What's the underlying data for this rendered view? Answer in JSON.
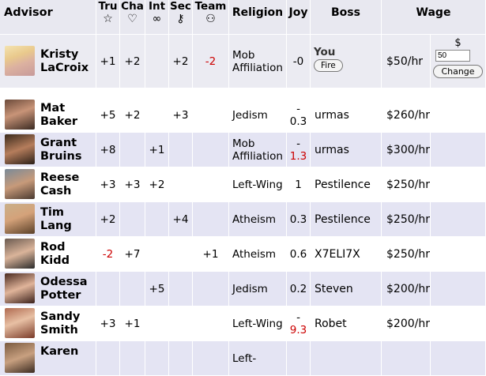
{
  "header": {
    "advisor": "Advisor",
    "tru": "Tru",
    "cha": "Cha",
    "int": "Int",
    "sec": "Sec",
    "team": "Team",
    "religion": "Religion",
    "joy": "Joy",
    "boss": "Boss",
    "wage": "Wage",
    "icons": {
      "tru": "star-icon",
      "cha": "heart-icon",
      "int": "infinity-icon",
      "sec": "key-icon",
      "team": "people-icon"
    }
  },
  "current": {
    "name": "Kristy LaCroix",
    "tru": "+1",
    "cha": "+2",
    "int": "",
    "sec": "+2",
    "team": "-2",
    "religion": "Mob Affiliation",
    "joy": "-0",
    "boss": "You",
    "fire_label": "Fire",
    "wage": "$50/hr",
    "currency": "$",
    "wage_input": "50",
    "change_label": "Change"
  },
  "advisors": [
    {
      "name": "Mat Baker",
      "tru": "+5",
      "cha": "+2",
      "int": "",
      "sec": "+3",
      "team": "",
      "religion": "Jedism",
      "joy": "-0.3",
      "boss": "urmas",
      "wage": "$260/hr"
    },
    {
      "name": "Grant Bruins",
      "tru": "+8",
      "cha": "",
      "int": "+1",
      "sec": "",
      "team": "",
      "religion": "Mob Affiliation",
      "joy": "-1.3",
      "boss": "urmas",
      "wage": "$300/hr"
    },
    {
      "name": "Reese Cash",
      "tru": "+3",
      "cha": "+3",
      "int": "+2",
      "sec": "",
      "team": "",
      "religion": "Left-Wing",
      "joy": "1",
      "boss": "Pestilence",
      "wage": "$250/hr"
    },
    {
      "name": "Tim Lang",
      "tru": "+2",
      "cha": "",
      "int": "",
      "sec": "+4",
      "team": "",
      "religion": "Atheism",
      "joy": "0.3",
      "boss": "Pestilence",
      "wage": "$250/hr"
    },
    {
      "name": "Rod Kidd",
      "tru": "-2",
      "cha": "+7",
      "int": "",
      "sec": "",
      "team": "+1",
      "religion": "Atheism",
      "joy": "0.6",
      "boss": "X7ELI7X",
      "wage": "$250/hr"
    },
    {
      "name": "Odessa Potter",
      "tru": "",
      "cha": "",
      "int": "+5",
      "sec": "",
      "team": "",
      "religion": "Jedism",
      "joy": "0.2",
      "boss": "Steven",
      "wage": "$200/hr"
    },
    {
      "name": "Sandy Smith",
      "tru": "+3",
      "cha": "+1",
      "int": "",
      "sec": "",
      "team": "",
      "religion": "Left-Wing",
      "joy": "-9.3",
      "boss": "Robet",
      "wage": "$200/hr"
    },
    {
      "name": "Karen",
      "tru": "",
      "cha": "",
      "int": "",
      "sec": "",
      "team": "",
      "religion": "Left-",
      "joy": "",
      "boss": "",
      "wage": ""
    }
  ]
}
